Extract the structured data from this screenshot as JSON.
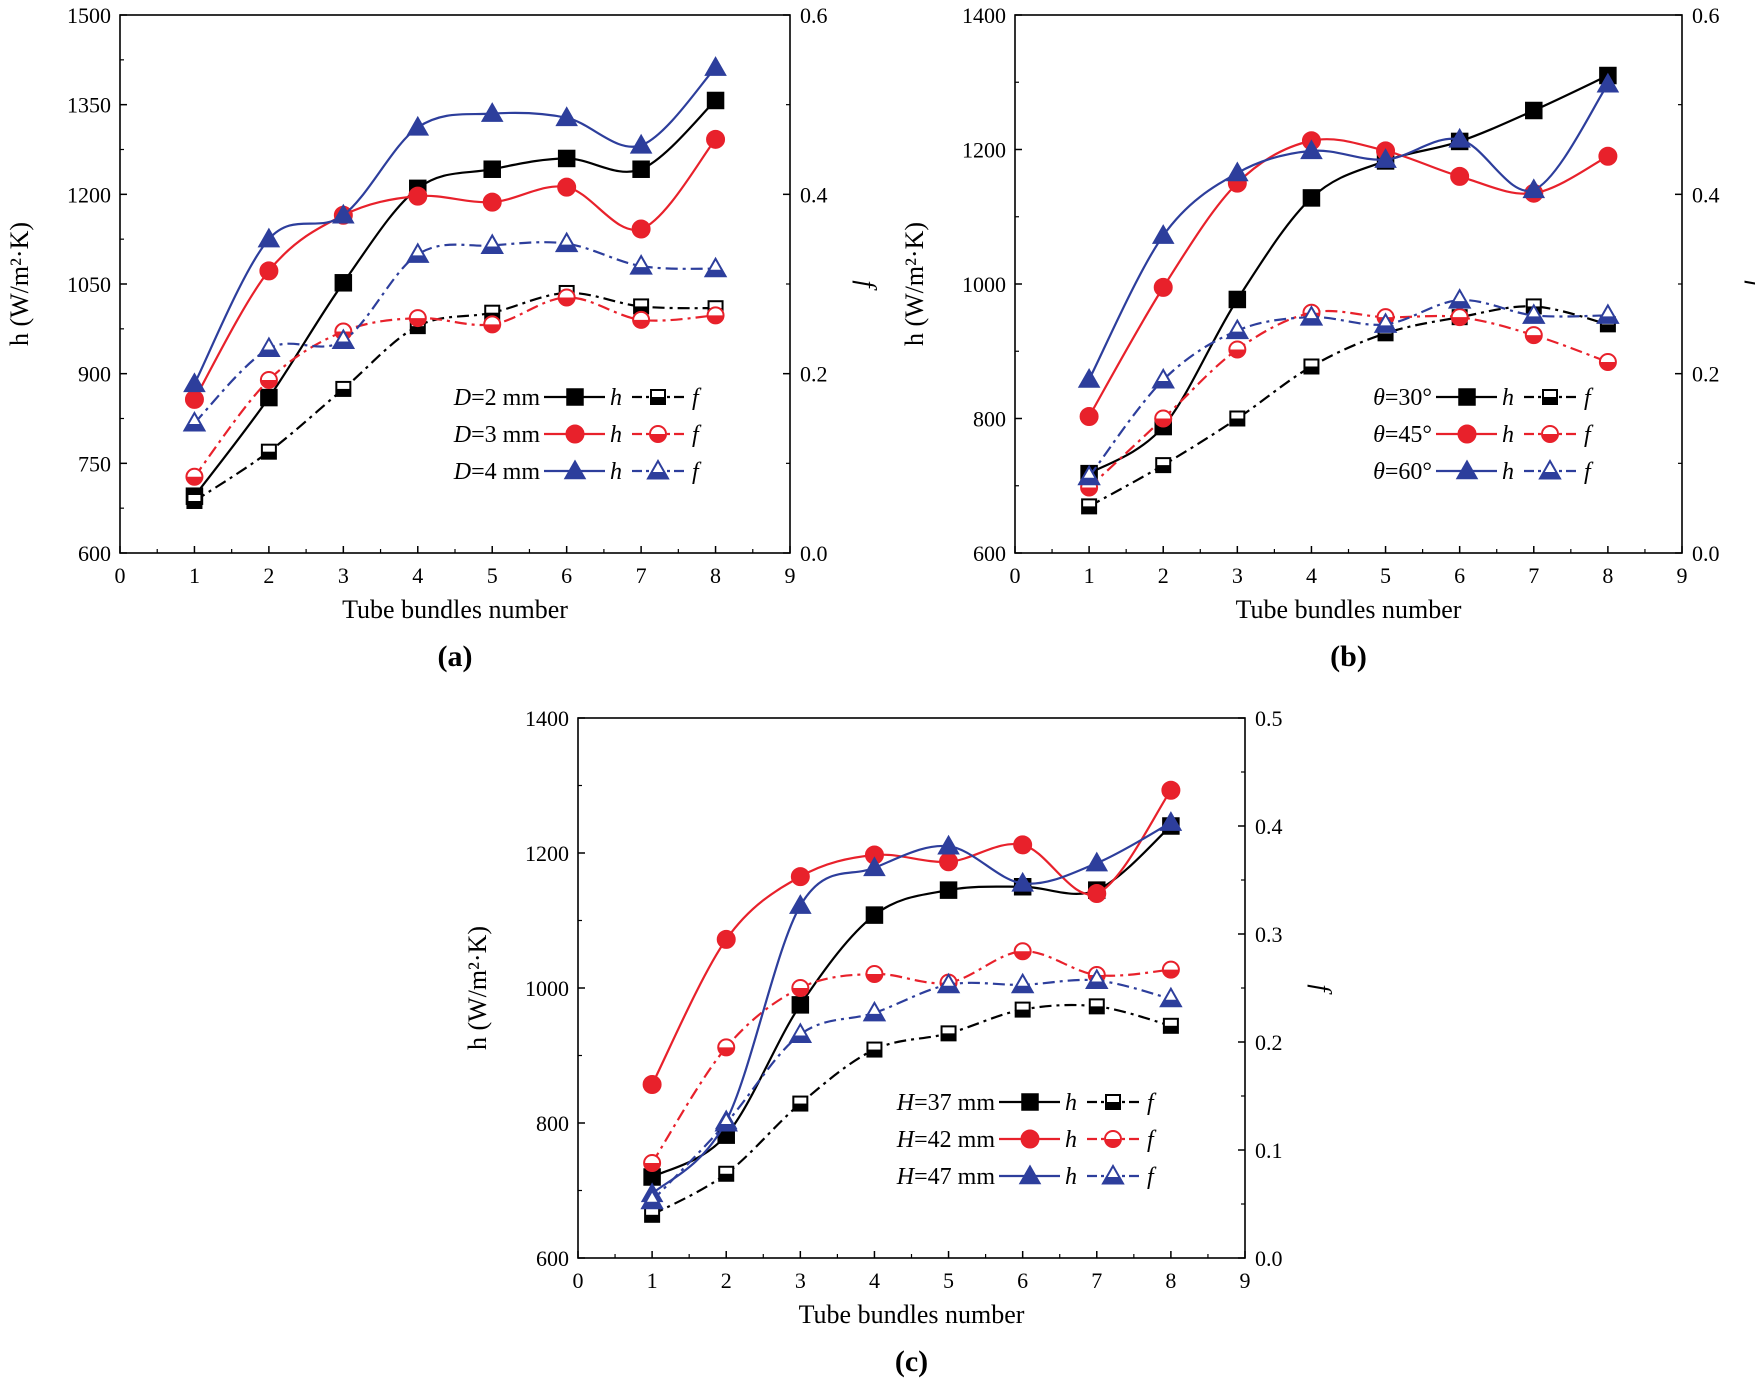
{
  "figure": {
    "panels": [
      "(a)",
      "(b)",
      "(c)"
    ]
  },
  "colors": {
    "black": "#000000",
    "red": "#e8212b",
    "blue": "#2d3e9c"
  },
  "chart_data": [
    {
      "panel": "a",
      "panel_label": "a",
      "type": "line",
      "xlabel": "Tube bundles number",
      "ylabel_left": "h (W/m²·K)",
      "ylabel_right": "f",
      "xlim": [
        0,
        9
      ],
      "xticks": [
        "0",
        "1",
        "2",
        "3",
        "4",
        "5",
        "6",
        "7",
        "8",
        "9"
      ],
      "ylim_left": [
        600,
        1500
      ],
      "yticks_left": [
        "600",
        "750",
        "900",
        "1050",
        "1200",
        "1350",
        "1500"
      ],
      "ylim_right": [
        0.0,
        0.6
      ],
      "yticks_right": [
        "0.0",
        "0.2",
        "0.4",
        "0.6"
      ],
      "legend_position": "bottom-right",
      "x": [
        1,
        2,
        3,
        4,
        5,
        6,
        7,
        8
      ],
      "groups": [
        {
          "prefix": "D",
          "value": "=2 mm",
          "color": "#000000",
          "marker": "square",
          "h": [
            695,
            860,
            1052,
            1210,
            1242,
            1260,
            1242,
            1357
          ],
          "f": [
            0.058,
            0.113,
            0.183,
            0.253,
            0.268,
            0.29,
            0.275,
            0.273
          ]
        },
        {
          "prefix": "D",
          "value": "=3 mm",
          "color": "#e8212b",
          "marker": "circle",
          "h": [
            857,
            1072,
            1165,
            1197,
            1187,
            1212,
            1142,
            1292
          ],
          "f": [
            0.085,
            0.193,
            0.247,
            0.262,
            0.255,
            0.285,
            0.26,
            0.265
          ]
        },
        {
          "prefix": "D",
          "value": "=4 mm",
          "color": "#2d3e9c",
          "marker": "triangle",
          "h": [
            883,
            1125,
            1165,
            1312,
            1335,
            1328,
            1282,
            1412
          ],
          "f": [
            0.145,
            0.228,
            0.237,
            0.333,
            0.343,
            0.345,
            0.32,
            0.317
          ]
        }
      ],
      "legend_h": "h",
      "legend_f": "f"
    },
    {
      "panel": "b",
      "panel_label": "b",
      "type": "line",
      "xlabel": "Tube bundles number",
      "ylabel_left": "h (W/m²·K)",
      "ylabel_right": "f",
      "xlim": [
        0,
        9
      ],
      "xticks": [
        "0",
        "1",
        "2",
        "3",
        "4",
        "5",
        "6",
        "7",
        "8",
        "9"
      ],
      "ylim_left": [
        600,
        1400
      ],
      "yticks_left": [
        "600",
        "800",
        "1000",
        "1200",
        "1400"
      ],
      "ylim_right": [
        0.0,
        0.6
      ],
      "yticks_right": [
        "0.0",
        "0.2",
        "0.4",
        "0.6"
      ],
      "legend_position": "bottom-right",
      "x": [
        1,
        2,
        3,
        4,
        5,
        6,
        7,
        8
      ],
      "groups": [
        {
          "prefix": "θ",
          "value": "=30°",
          "color": "#000000",
          "marker": "square",
          "h": [
            718,
            788,
            977,
            1128,
            1183,
            1212,
            1258,
            1310
          ],
          "f": [
            0.052,
            0.098,
            0.15,
            0.208,
            0.245,
            0.263,
            0.275,
            0.255
          ]
        },
        {
          "prefix": "θ",
          "value": "=45°",
          "color": "#e8212b",
          "marker": "circle",
          "h": [
            803,
            995,
            1150,
            1213,
            1198,
            1160,
            1135,
            1190
          ],
          "f": [
            0.073,
            0.15,
            0.227,
            0.268,
            0.263,
            0.263,
            0.243,
            0.213
          ]
        },
        {
          "prefix": "θ",
          "value": "=60°",
          "color": "#2d3e9c",
          "marker": "triangle",
          "h": [
            858,
            1072,
            1165,
            1198,
            1185,
            1215,
            1140,
            1297
          ],
          "f": [
            0.085,
            0.193,
            0.248,
            0.263,
            0.255,
            0.282,
            0.265,
            0.265
          ]
        }
      ],
      "legend_h": "h",
      "legend_f": "f"
    },
    {
      "panel": "c",
      "panel_label": "c",
      "type": "line",
      "xlabel": "Tube bundles number",
      "ylabel_left": "h (W/m²·K)",
      "ylabel_right": "f",
      "xlim": [
        0,
        9
      ],
      "xticks": [
        "0",
        "1",
        "2",
        "3",
        "4",
        "5",
        "6",
        "7",
        "8",
        "9"
      ],
      "ylim_left": [
        600,
        1400
      ],
      "yticks_left": [
        "600",
        "800",
        "1000",
        "1200",
        "1400"
      ],
      "ylim_right": [
        0.0,
        0.5
      ],
      "yticks_right": [
        "0.0",
        "0.1",
        "0.2",
        "0.3",
        "0.4",
        "0.5"
      ],
      "legend_position": "bottom-right",
      "x": [
        1,
        2,
        3,
        4,
        5,
        6,
        7,
        8
      ],
      "groups": [
        {
          "prefix": "H",
          "value": "=37 mm",
          "color": "#000000",
          "marker": "square",
          "h": [
            720,
            782,
            975,
            1108,
            1145,
            1150,
            1145,
            1240
          ],
          "f": [
            0.04,
            0.078,
            0.143,
            0.193,
            0.208,
            0.23,
            0.233,
            0.215
          ]
        },
        {
          "prefix": "H",
          "value": "=42 mm",
          "color": "#e8212b",
          "marker": "circle",
          "h": [
            857,
            1072,
            1165,
            1197,
            1187,
            1212,
            1140,
            1293
          ],
          "f": [
            0.088,
            0.195,
            0.25,
            0.263,
            0.255,
            0.284,
            0.262,
            0.267
          ]
        },
        {
          "prefix": "H",
          "value": "=47 mm",
          "color": "#2d3e9c",
          "marker": "triangle",
          "h": [
            695,
            803,
            1122,
            1178,
            1210,
            1155,
            1185,
            1245
          ],
          "f": [
            0.053,
            0.125,
            0.207,
            0.227,
            0.253,
            0.253,
            0.257,
            0.24
          ]
        }
      ],
      "legend_h": "h",
      "legend_f": "f"
    }
  ]
}
